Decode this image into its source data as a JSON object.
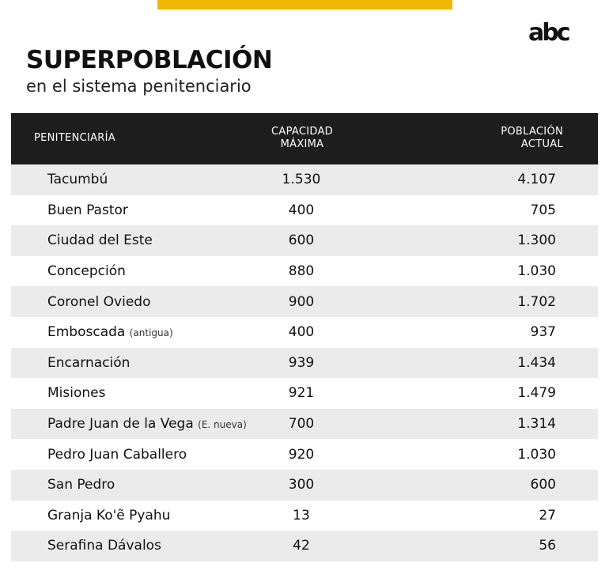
{
  "brand": {
    "logo_text": "abc",
    "accent_color": "#f2b705"
  },
  "header": {
    "title": "SUPERPOBLACIÓN",
    "subtitle": "en el sistema penitenciario"
  },
  "table": {
    "columns": {
      "name": "PENITENCIARÍA",
      "capacity_line1": "CAPACIDAD",
      "capacity_line2": "MÁXIMA",
      "population_line1": "POBLACIÓN",
      "population_line2": "ACTUAL"
    },
    "rows": [
      {
        "name": "Tacumbú",
        "note": "",
        "capacity": "1.530",
        "population": "4.107"
      },
      {
        "name": "Buen Pastor",
        "note": "",
        "capacity": "400",
        "population": "705"
      },
      {
        "name": "Ciudad del Este",
        "note": "",
        "capacity": "600",
        "population": "1.300"
      },
      {
        "name": "Concepción",
        "note": "",
        "capacity": "880",
        "population": "1.030"
      },
      {
        "name": "Coronel Oviedo",
        "note": "",
        "capacity": "900",
        "population": "1.702"
      },
      {
        "name": "Emboscada",
        "note": "(antigua)",
        "capacity": "400",
        "population": "937"
      },
      {
        "name": "Encarnación",
        "note": "",
        "capacity": "939",
        "population": "1.434"
      },
      {
        "name": "Misiones",
        "note": "",
        "capacity": "921",
        "population": "1.479"
      },
      {
        "name": "Padre Juan de la Vega",
        "note": "(E. nueva)",
        "capacity": "700",
        "population": "1.314"
      },
      {
        "name": "Pedro Juan Caballero",
        "note": "",
        "capacity": "920",
        "population": "1.030"
      },
      {
        "name": "San Pedro",
        "note": "",
        "capacity": "300",
        "population": "600"
      },
      {
        "name": "Granja Ko'ẽ Pyahu",
        "note": "",
        "capacity": "13",
        "population": "27"
      },
      {
        "name": "Serafina Dávalos",
        "note": "",
        "capacity": "42",
        "population": "56"
      }
    ]
  }
}
